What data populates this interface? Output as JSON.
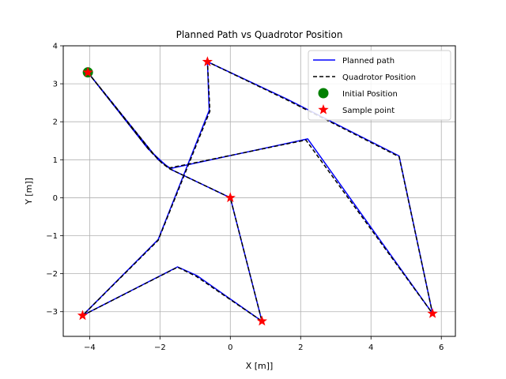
{
  "chart_data": {
    "type": "line",
    "title": "Planned Path vs Quadrotor Position",
    "xlabel": "X [m]]",
    "ylabel": "Y [m]]",
    "xlim": [
      -4.75,
      6.4
    ],
    "ylim": [
      -3.65,
      4.0
    ],
    "xticks": [
      -4,
      -2,
      0,
      2,
      4,
      6
    ],
    "xtick_labels": [
      "−4",
      "−2",
      "0",
      "2",
      "4",
      "6"
    ],
    "yticks": [
      -3,
      -2,
      -1,
      0,
      1,
      2,
      3,
      4
    ],
    "ytick_labels": [
      "−3",
      "−2",
      "−1",
      "0",
      "1",
      "2",
      "3",
      "4"
    ],
    "grid": true,
    "legend_position": "top-right",
    "series": [
      {
        "name": "Planned path",
        "style": "solid",
        "color": "#0000ff",
        "x": [
          -4.05,
          -2.35,
          -1.95,
          -1.7,
          0.0,
          0.9,
          -0.95,
          -1.5,
          -4.2,
          -2.05,
          -0.6,
          -0.65,
          1.6,
          4.8,
          5.75,
          2.2,
          -1.7,
          -2.05,
          -4.05
        ],
        "y": [
          3.3,
          1.3,
          0.95,
          0.75,
          0.0,
          -3.25,
          -2.05,
          -1.82,
          -3.1,
          -1.1,
          2.3,
          3.58,
          2.6,
          1.1,
          -3.05,
          1.55,
          0.77,
          1.0,
          3.3
        ]
      },
      {
        "name": "Quadrotor Position",
        "style": "dashed",
        "color": "#000000",
        "x": [
          -4.05,
          -2.3,
          -1.93,
          -1.72,
          0.0,
          0.9,
          -0.97,
          -1.5,
          -4.2,
          -2.05,
          -0.58,
          -0.65,
          1.6,
          4.8,
          5.75,
          2.15,
          -1.75,
          -2.05,
          -4.05
        ],
        "y": [
          3.3,
          1.25,
          0.9,
          0.76,
          0.0,
          -3.25,
          -2.07,
          -1.83,
          -3.1,
          -1.12,
          2.28,
          3.58,
          2.58,
          1.08,
          -3.05,
          1.52,
          0.78,
          1.0,
          3.3
        ]
      }
    ],
    "initial_position": {
      "name": "Initial Position",
      "color": "#008000",
      "x": -4.05,
      "y": 3.3
    },
    "sample_points": {
      "name": "Sample point",
      "color": "#ff0000",
      "x": [
        -4.05,
        -0.65,
        0.0,
        0.9,
        -4.2,
        5.75
      ],
      "y": [
        3.3,
        3.58,
        0.0,
        -3.25,
        -3.1,
        -3.05
      ]
    }
  }
}
